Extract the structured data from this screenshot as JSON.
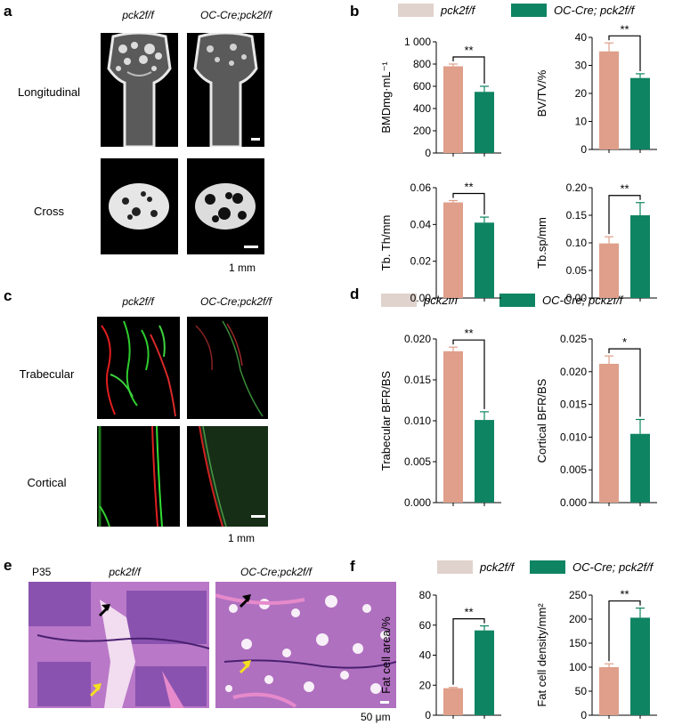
{
  "colors": {
    "control": "#df9f8a",
    "ko": "#0f8462",
    "legend_control": "#e0d2cc",
    "ko_dark": "#0a6a4f"
  },
  "panel_a": {
    "letter": "a",
    "col1": "pck2f/f",
    "col2": "OC-Cre;pck2f/f",
    "row1": "Longitudinal",
    "row2": "Cross",
    "scale": "1 mm"
  },
  "panel_b": {
    "letter": "b",
    "legend": [
      "pck2f/f",
      "OC-Cre; pck2f/f"
    ]
  },
  "panel_c": {
    "letter": "c",
    "col1": "pck2f/f",
    "col2": "OC-Cre;pck2f/f",
    "row1": "Trabecular",
    "row2": "Cortical",
    "scale": "1 mm"
  },
  "panel_d": {
    "letter": "d",
    "legend": [
      "pck2f/f",
      "OC-Cre; pck2f/f"
    ]
  },
  "panel_e": {
    "letter": "e",
    "stage": "P35",
    "col1": "pck2f/f",
    "col2": "OC-Cre;pck2f/f",
    "scale": "50 μm"
  },
  "panel_f": {
    "letter": "f",
    "legend": [
      "pck2f/f",
      "OC-Cre; pck2f/f"
    ]
  },
  "chart_data": [
    {
      "id": "b1",
      "type": "bar",
      "categories": [
        "pck2f/f",
        "OC-Cre; pck2f/f"
      ],
      "values": [
        780,
        550
      ],
      "errors": [
        20,
        50
      ],
      "ylabel": "BMDmg·mL⁻¹",
      "ylim": [
        0,
        1000
      ],
      "ticks": [
        0,
        200,
        400,
        600,
        800,
        "1 000"
      ],
      "sig": "**"
    },
    {
      "id": "b2",
      "type": "bar",
      "categories": [
        "pck2f/f",
        "OC-Cre; pck2f/f"
      ],
      "values": [
        35,
        25.5
      ],
      "errors": [
        3,
        1.5
      ],
      "ylabel": "BV/TV/%",
      "ylim": [
        0,
        40
      ],
      "ticks": [
        0,
        10,
        20,
        30,
        40
      ],
      "sig": "**"
    },
    {
      "id": "b3",
      "type": "bar",
      "categories": [
        "pck2f/f",
        "OC-Cre; pck2f/f"
      ],
      "values": [
        0.052,
        0.041
      ],
      "errors": [
        0.001,
        0.003
      ],
      "ylabel": "Tb. Th/mm",
      "ylim": [
        0,
        0.06
      ],
      "ticks": [
        "0.00",
        "0.02",
        "0.04",
        "0.06"
      ],
      "sig": "**"
    },
    {
      "id": "b4",
      "type": "bar",
      "categories": [
        "pck2f/f",
        "OC-Cre; pck2f/f"
      ],
      "values": [
        0.099,
        0.15
      ],
      "errors": [
        0.012,
        0.023
      ],
      "ylabel": "Tb.sp/mm",
      "ylim": [
        0,
        0.2
      ],
      "ticks": [
        "0.00",
        "0.05",
        "0.10",
        "0.15",
        "0.20"
      ],
      "sig": "**"
    },
    {
      "id": "d1",
      "type": "bar",
      "categories": [
        "pck2f/f",
        "OC-Cre; pck2f/f"
      ],
      "values": [
        0.0185,
        0.0101
      ],
      "errors": [
        0.0005,
        0.001
      ],
      "ylabel": "Trabecular BFR/BS",
      "ylim": [
        0,
        0.02
      ],
      "ticks": [
        "0.000",
        "0.005",
        "0.010",
        "0.015",
        "0.020"
      ],
      "sig": "**"
    },
    {
      "id": "d2",
      "type": "bar",
      "categories": [
        "pck2f/f",
        "OC-Cre; pck2f/f"
      ],
      "values": [
        0.0212,
        0.0105
      ],
      "errors": [
        0.0012,
        0.0022
      ],
      "ylabel": "Cortical BFR/BS",
      "ylim": [
        0,
        0.025
      ],
      "ticks": [
        "0.000",
        "0.005",
        "0.010",
        "0.015",
        "0.020",
        "0.025"
      ],
      "sig": "*"
    },
    {
      "id": "f1",
      "type": "bar",
      "categories": [
        "pck2f/f",
        "OC-Cre; pck2f/f"
      ],
      "values": [
        18,
        56.5
      ],
      "errors": [
        0.5,
        3
      ],
      "ylabel": "Fat cell area/%",
      "ylim": [
        0,
        80
      ],
      "ticks": [
        0,
        20,
        40,
        60,
        80
      ],
      "sig": "**"
    },
    {
      "id": "f2",
      "type": "bar",
      "categories": [
        "pck2f/f",
        "OC-Cre; pck2f/f"
      ],
      "values": [
        100,
        203
      ],
      "errors": [
        7,
        20
      ],
      "ylabel": "Fat cell density/mm²",
      "ylim": [
        0,
        250
      ],
      "ticks": [
        0,
        50,
        100,
        150,
        200,
        250
      ],
      "sig": "**"
    }
  ]
}
